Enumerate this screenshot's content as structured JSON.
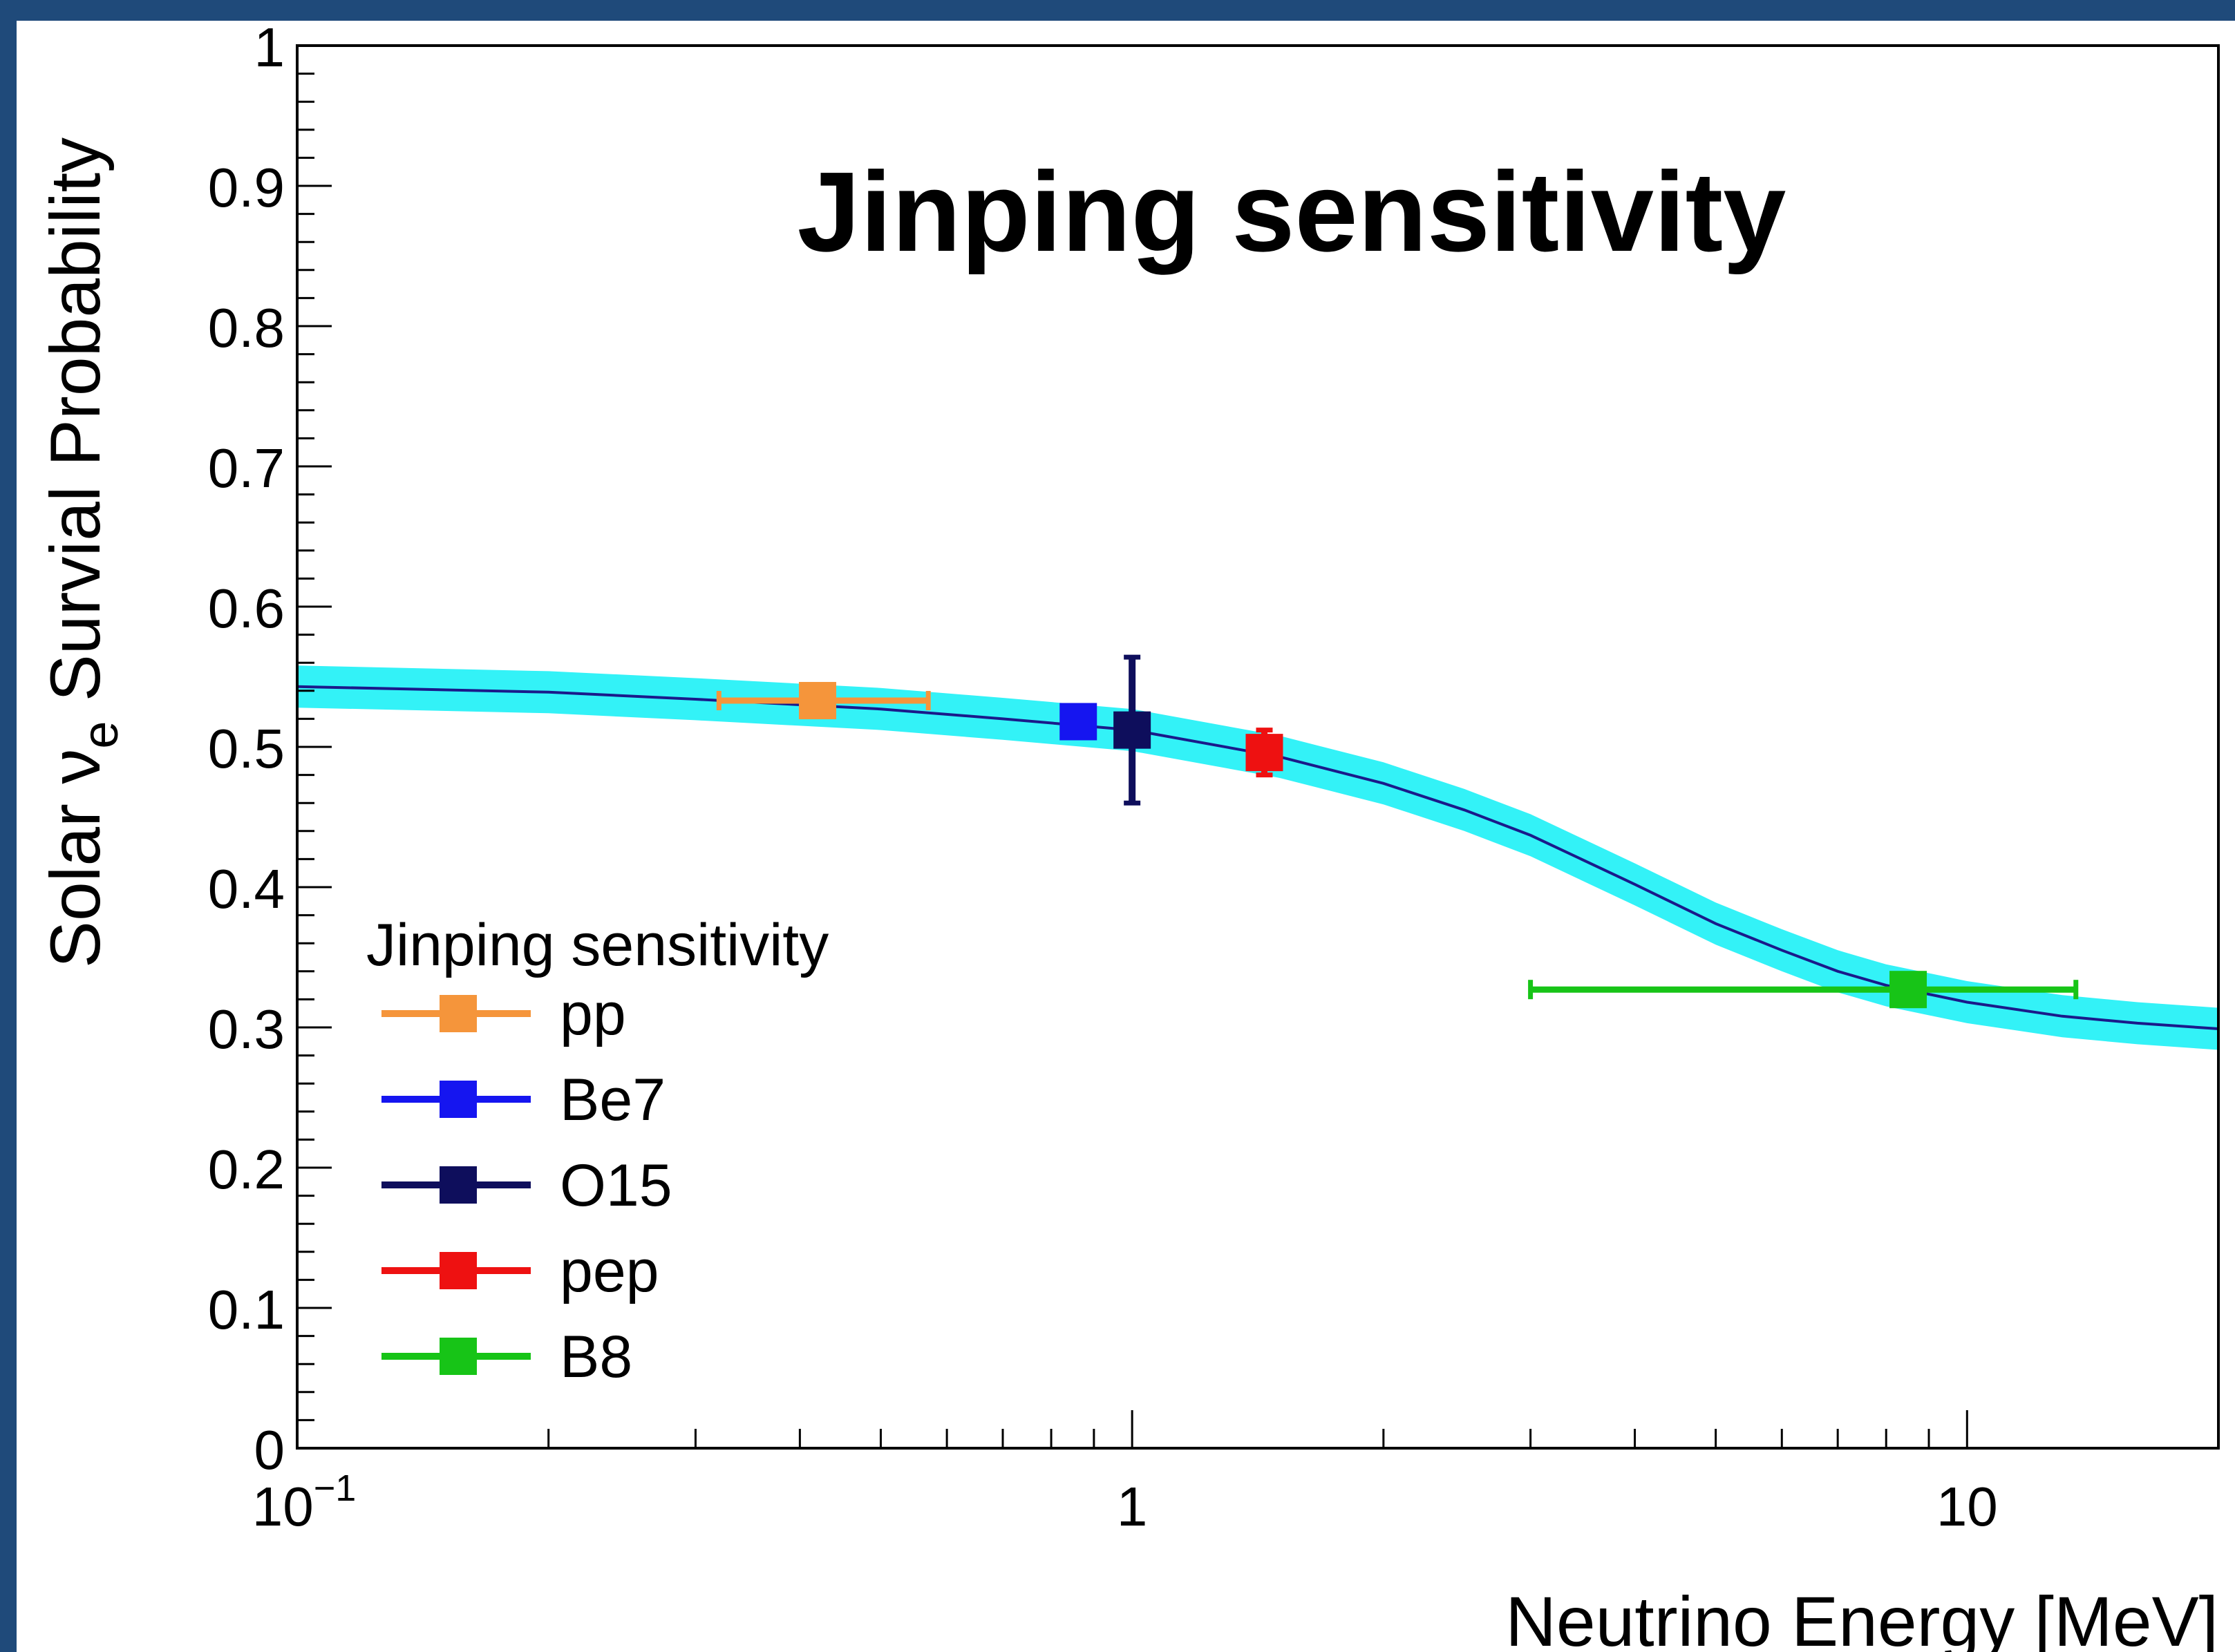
{
  "chart_data": {
    "type": "scatter",
    "title": "Jinping sensitivity",
    "xlabel": "Neutrino Energy [MeV]",
    "ylabel_prefix": "Solar ",
    "ylabel_symbol": "ν",
    "ylabel_subscript": "e",
    "ylabel_suffix": " Survial Probability",
    "xscale": "log",
    "xlim": [
      0.1,
      20
    ],
    "ylim": [
      0,
      1
    ],
    "x_ticks": [
      {
        "value": 0.1,
        "base": "10",
        "exp": "−1"
      },
      {
        "value": 1,
        "label": "1"
      },
      {
        "value": 10,
        "label": "10"
      }
    ],
    "y_ticks": [
      "0",
      "0.1",
      "0.2",
      "0.3",
      "0.4",
      "0.5",
      "0.6",
      "0.7",
      "0.8",
      "0.9",
      "1"
    ],
    "legend": {
      "title": "Jinping sensitivity",
      "position": "bottom-left"
    },
    "band": {
      "color": "#33f2f7",
      "line_color": "#1a1a8a",
      "central": [
        [
          0.1,
          0.543
        ],
        [
          0.2,
          0.539
        ],
        [
          0.3,
          0.534
        ],
        [
          0.5,
          0.527
        ],
        [
          0.7,
          0.52
        ],
        [
          1.0,
          0.512
        ],
        [
          1.5,
          0.493
        ],
        [
          2.0,
          0.474
        ],
        [
          2.5,
          0.455
        ],
        [
          3.0,
          0.437
        ],
        [
          4.0,
          0.402
        ],
        [
          5.0,
          0.374
        ],
        [
          6.0,
          0.355
        ],
        [
          7.0,
          0.34
        ],
        [
          8.0,
          0.33
        ],
        [
          10.0,
          0.318
        ],
        [
          13.0,
          0.308
        ],
        [
          16.0,
          0.303
        ],
        [
          20.0,
          0.299
        ]
      ],
      "half_width": 0.015
    },
    "series": [
      {
        "name": "pp",
        "color": "#f5953b",
        "x": 0.42,
        "y": 0.533,
        "xerr_lo": 0.32,
        "xerr_hi": 0.57,
        "yerr": 0.008
      },
      {
        "name": "Be7",
        "color": "#1515f0",
        "x": 0.862,
        "y": 0.518,
        "xerr_lo": null,
        "xerr_hi": null,
        "yerr": 0.01
      },
      {
        "name": "O15",
        "color": "#0e0e5c",
        "x": 1.0,
        "y": 0.512,
        "xerr_lo": null,
        "xerr_hi": null,
        "yerr": 0.052
      },
      {
        "name": "pep",
        "color": "#ee1111",
        "x": 1.44,
        "y": 0.496,
        "xerr_lo": null,
        "xerr_hi": null,
        "yerr": 0.016
      },
      {
        "name": "B8",
        "color": "#17c417",
        "x": 8.5,
        "y": 0.327,
        "xerr_lo": 3.0,
        "xerr_hi": 13.5,
        "yerr": 0.01
      }
    ]
  }
}
